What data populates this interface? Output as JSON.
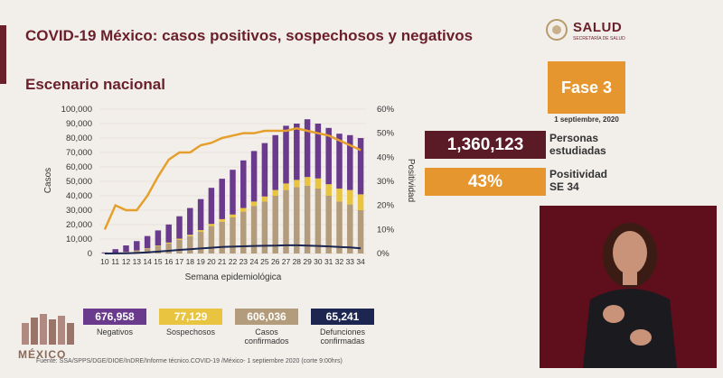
{
  "header": {
    "title": "COVID-19 México: casos positivos, sospechosos y negativos",
    "subtitle": "Escenario nacional",
    "logo_name": "SALUD",
    "logo_sub": "SECRETARÍA DE SALUD"
  },
  "phase": {
    "label": "Fase 3",
    "date": "1 septiembre, 2020"
  },
  "stats": {
    "people_value": "1,360,123",
    "people_label": "Personas estudiadas",
    "positivity_value": "43%",
    "positivity_label": "Positividad SE 34"
  },
  "legend": {
    "negatives_value": "676,958",
    "negatives_label": "Negativos",
    "suspects_value": "77,129",
    "suspects_label": "Sospechosos",
    "confirmed_value": "606,036",
    "confirmed_label": "Casos confirmados",
    "deaths_value": "65,241",
    "deaths_label": "Defunciones confirmadas"
  },
  "footer": {
    "brand": "MÉXICO",
    "source": "Fuente: SSA/SPPS/DGE/DIOE/InDRE/Informe técnico.COVID-19 /México- 1 septiembre 2020 (corte 9:00hrs)"
  },
  "colors": {
    "negatives": "#6a3a8c",
    "suspects": "#e9c440",
    "confirmed": "#b39c7b",
    "deaths": "#1c2650",
    "positivity": "#e59f2c"
  },
  "chart_data": {
    "type": "bar",
    "stacked": true,
    "xlabel": "Semana epidemiológica",
    "ylabel": "Casos",
    "y2label": "Positividad",
    "ylim": [
      0,
      100000
    ],
    "y2lim": [
      0,
      60
    ],
    "yticks": [
      "0",
      "10,000",
      "20,000",
      "30,000",
      "40,000",
      "50,000",
      "60,000",
      "70,000",
      "80,000",
      "90,000",
      "100,000"
    ],
    "y2ticks": [
      "0%",
      "10%",
      "20%",
      "30%",
      "40%",
      "50%",
      "60%"
    ],
    "categories": [
      "10",
      "11",
      "12",
      "13",
      "14",
      "15",
      "16",
      "17",
      "18",
      "19",
      "20",
      "21",
      "22",
      "23",
      "24",
      "25",
      "26",
      "27",
      "28",
      "29",
      "30",
      "31",
      "32",
      "33",
      "34"
    ],
    "series": [
      {
        "name": "Casos confirmados",
        "values": [
          100,
          400,
          900,
          1800,
          3200,
          5000,
          7000,
          9500,
          12000,
          15000,
          19000,
          22000,
          25000,
          29000,
          33000,
          36000,
          40000,
          44000,
          46000,
          47000,
          45000,
          40000,
          36000,
          34000,
          30000
        ]
      },
      {
        "name": "Sospechosos",
        "values": [
          50,
          100,
          200,
          300,
          400,
          500,
          600,
          800,
          1000,
          1200,
          1500,
          1800,
          2000,
          2500,
          3000,
          3500,
          4000,
          4500,
          5000,
          6000,
          7000,
          8000,
          9000,
          10000,
          11000
        ]
      },
      {
        "name": "Negativos",
        "values": [
          600,
          2500,
          4500,
          6500,
          8500,
          10500,
          12500,
          15500,
          18500,
          21500,
          25000,
          28000,
          31000,
          33000,
          35000,
          37000,
          38000,
          40000,
          39000,
          40000,
          38000,
          39000,
          38000,
          38000,
          39000
        ]
      },
      {
        "name": "Defunciones confirmadas",
        "type": "line",
        "values": [
          0,
          50,
          150,
          400,
          800,
          1300,
          1900,
          2500,
          3000,
          3500,
          4000,
          4500,
          4800,
          5000,
          5200,
          5400,
          5500,
          5700,
          5700,
          5500,
          5200,
          4900,
          4500,
          4200,
          3600
        ]
      },
      {
        "name": "Positividad",
        "type": "line",
        "axis": "y2",
        "values": [
          10,
          20,
          18,
          18,
          24,
          32,
          39,
          42,
          42,
          45,
          46,
          48,
          49,
          50,
          50,
          51,
          51,
          51,
          52,
          51,
          50,
          49,
          47,
          45,
          43
        ]
      }
    ]
  }
}
